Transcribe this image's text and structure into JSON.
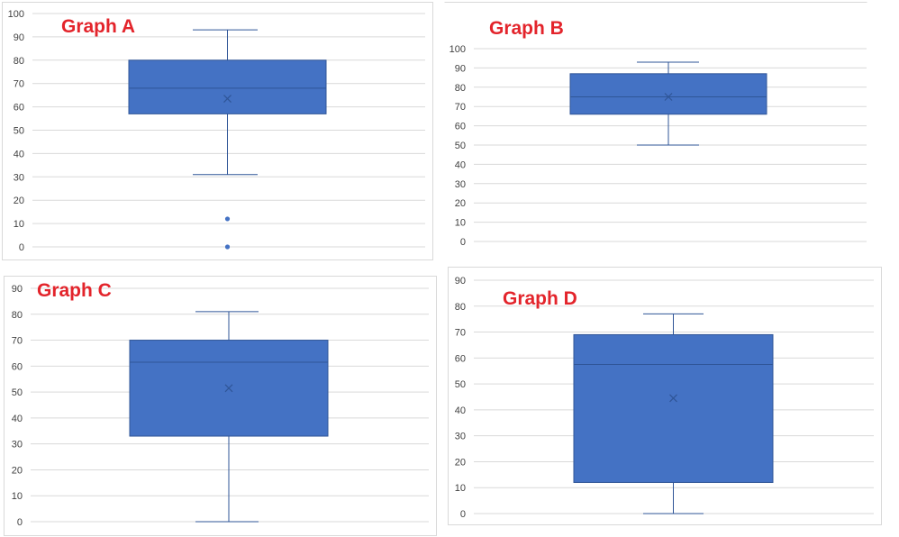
{
  "chart_data": [
    {
      "type": "boxplot",
      "title": "Graph A",
      "ylim": [
        0,
        100
      ],
      "yticks": [
        0,
        10,
        20,
        30,
        40,
        50,
        60,
        70,
        80,
        90,
        100
      ],
      "box": {
        "min": 31,
        "q1": 57,
        "median": 68,
        "q3": 80,
        "max": 93,
        "mean": 63.5
      },
      "outliers": [
        12,
        0
      ]
    },
    {
      "type": "boxplot",
      "title": "Graph B",
      "ylim": [
        0,
        100
      ],
      "yticks": [
        0,
        10,
        20,
        30,
        40,
        50,
        60,
        70,
        80,
        90,
        100
      ],
      "box": {
        "min": 50,
        "q1": 66,
        "median": 75,
        "q3": 87,
        "max": 93,
        "mean": 75
      },
      "outliers": []
    },
    {
      "type": "boxplot",
      "title": "Graph C",
      "ylim": [
        0,
        90
      ],
      "yticks": [
        0,
        10,
        20,
        30,
        40,
        50,
        60,
        70,
        80,
        90
      ],
      "box": {
        "min": 0,
        "q1": 33,
        "median": 61.5,
        "q3": 70,
        "max": 81,
        "mean": 51.5
      },
      "outliers": []
    },
    {
      "type": "boxplot",
      "title": "Graph D",
      "ylim": [
        0,
        90
      ],
      "yticks": [
        0,
        10,
        20,
        30,
        40,
        50,
        60,
        70,
        80,
        90
      ],
      "box": {
        "min": 0,
        "q1": 12,
        "median": 57.5,
        "q3": 69,
        "max": 77,
        "mean": 44.5
      },
      "outliers": []
    }
  ],
  "colors": {
    "box_fill": "#4472c4",
    "box_stroke": "#2f5597",
    "whisker": "#2f5597",
    "grid": "#d9d9d9",
    "title": "#e3242b"
  }
}
